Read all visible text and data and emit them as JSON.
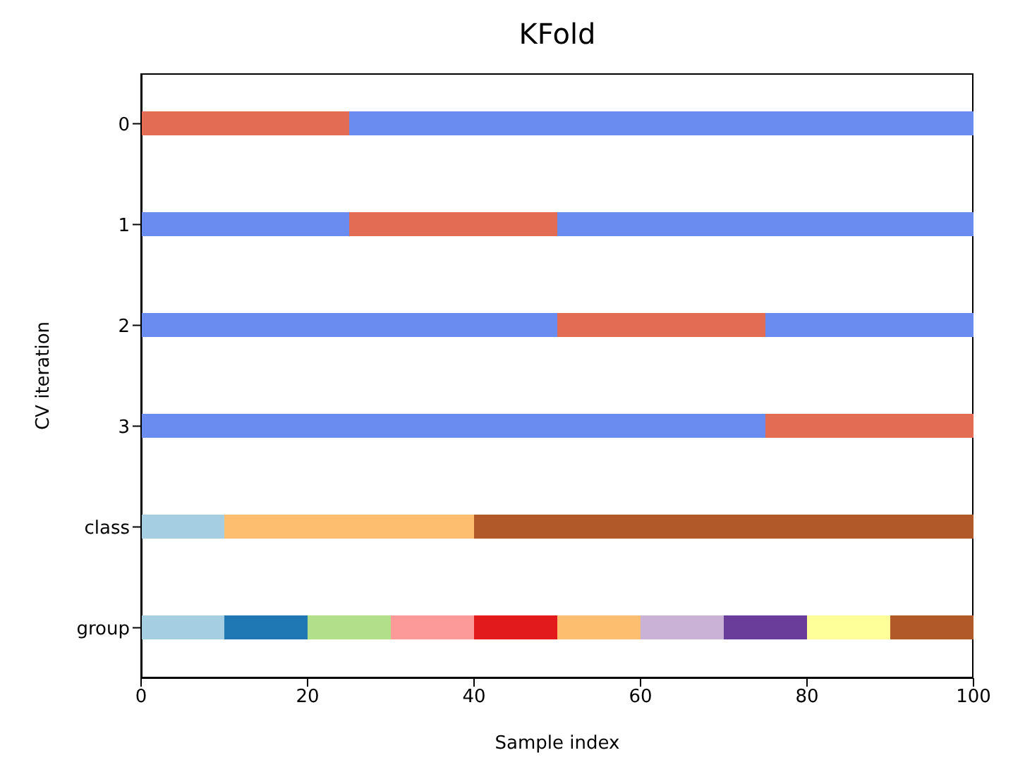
{
  "chart_data": {
    "type": "bar",
    "orientation": "horizontal",
    "stacked": true,
    "title": "KFold",
    "xlabel": "Sample index",
    "ylabel": "CV iteration",
    "categories": [
      "0",
      "1",
      "2",
      "3",
      "class",
      "group"
    ],
    "xlim": [
      0,
      100
    ],
    "xticks": [
      0,
      20,
      40,
      60,
      80,
      100
    ],
    "grid": false,
    "legend": false,
    "series": [
      {
        "values": [
          25,
          25,
          50,
          75,
          10,
          10
        ],
        "colors": [
          "#e36c55",
          "#6a8bef",
          "#6a8bef",
          "#6a8bef",
          "#a6cee3",
          "#a6cee3"
        ]
      },
      {
        "values": [
          75,
          25,
          25,
          25,
          30,
          10
        ],
        "colors": [
          "#6a8bef",
          "#e36c55",
          "#e36c55",
          "#e36c55",
          "#fdbf6f",
          "#1f78b4"
        ]
      },
      {
        "values": [
          null,
          50,
          25,
          null,
          60,
          10
        ],
        "colors": [
          null,
          "#6a8bef",
          "#6a8bef",
          null,
          "#b15928",
          "#b2df8a"
        ]
      },
      {
        "values": [
          null,
          null,
          null,
          null,
          null,
          10
        ],
        "colors": [
          null,
          null,
          null,
          null,
          null,
          "#fb9a99"
        ]
      },
      {
        "values": [
          null,
          null,
          null,
          null,
          null,
          10
        ],
        "colors": [
          null,
          null,
          null,
          null,
          null,
          "#e31a1c"
        ]
      },
      {
        "values": [
          null,
          null,
          null,
          null,
          null,
          10
        ],
        "colors": [
          null,
          null,
          null,
          null,
          null,
          "#fdbf6f"
        ]
      },
      {
        "values": [
          null,
          null,
          null,
          null,
          null,
          10
        ],
        "colors": [
          null,
          null,
          null,
          null,
          null,
          "#cab2d6"
        ]
      },
      {
        "values": [
          null,
          null,
          null,
          null,
          null,
          10
        ],
        "colors": [
          null,
          null,
          null,
          null,
          null,
          "#6a3d9a"
        ]
      },
      {
        "values": [
          null,
          null,
          null,
          null,
          null,
          10
        ],
        "colors": [
          null,
          null,
          null,
          null,
          null,
          "#ffff99"
        ]
      },
      {
        "values": [
          null,
          null,
          null,
          null,
          null,
          10
        ],
        "colors": [
          null,
          null,
          null,
          null,
          null,
          "#b15928"
        ]
      }
    ]
  }
}
